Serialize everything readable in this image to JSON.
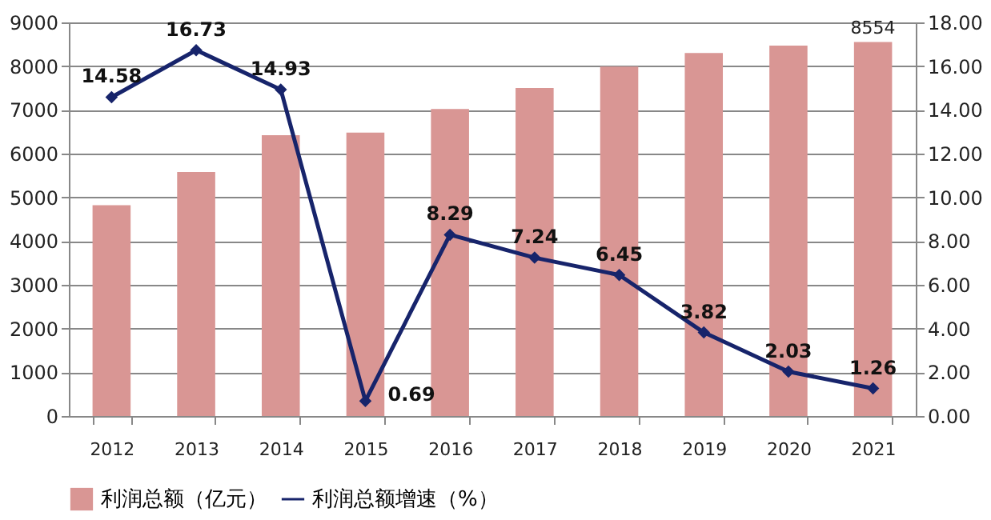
{
  "chart_data": {
    "type": "bar",
    "categories": [
      "2012",
      "2013",
      "2014",
      "2015",
      "2016",
      "2017",
      "2018",
      "2019",
      "2020",
      "2021"
    ],
    "series": [
      {
        "name": "利润总额（亿元）",
        "color": "#d99694",
        "values": [
          4820,
          5580,
          6420,
          6480,
          7020,
          7500,
          7990,
          8300,
          8470,
          8554
        ],
        "value_labels": [
          null,
          null,
          null,
          null,
          null,
          null,
          null,
          null,
          null,
          "8554"
        ]
      },
      {
        "name": "利润总额增速（%）",
        "type": "line",
        "axis": "y2",
        "color": "#17246b",
        "marker": "diamond",
        "data_labels": true,
        "values": [
          14.58,
          16.73,
          14.93,
          0.69,
          8.29,
          7.24,
          6.45,
          3.82,
          2.03,
          1.26
        ]
      }
    ],
    "ylim": [
      0,
      9000
    ],
    "yticks": [
      0,
      1000,
      2000,
      3000,
      4000,
      5000,
      6000,
      7000,
      8000,
      9000
    ],
    "y2lim": [
      0,
      18
    ],
    "y2ticks": [
      {
        "value": 0,
        "label": "0.00"
      },
      {
        "value": 2,
        "label": "2.00"
      },
      {
        "value": 4,
        "label": "4.00"
      },
      {
        "value": 6,
        "label": "6.00"
      },
      {
        "value": 8,
        "label": "8.00"
      },
      {
        "value": 10,
        "label": "10.00"
      },
      {
        "value": 12,
        "label": "12.00"
      },
      {
        "value": 14,
        "label": "14.00"
      },
      {
        "value": 16,
        "label": "16.00"
      },
      {
        "value": 18,
        "label": "18.00"
      }
    ],
    "grid": "y",
    "legend": "bottom"
  }
}
